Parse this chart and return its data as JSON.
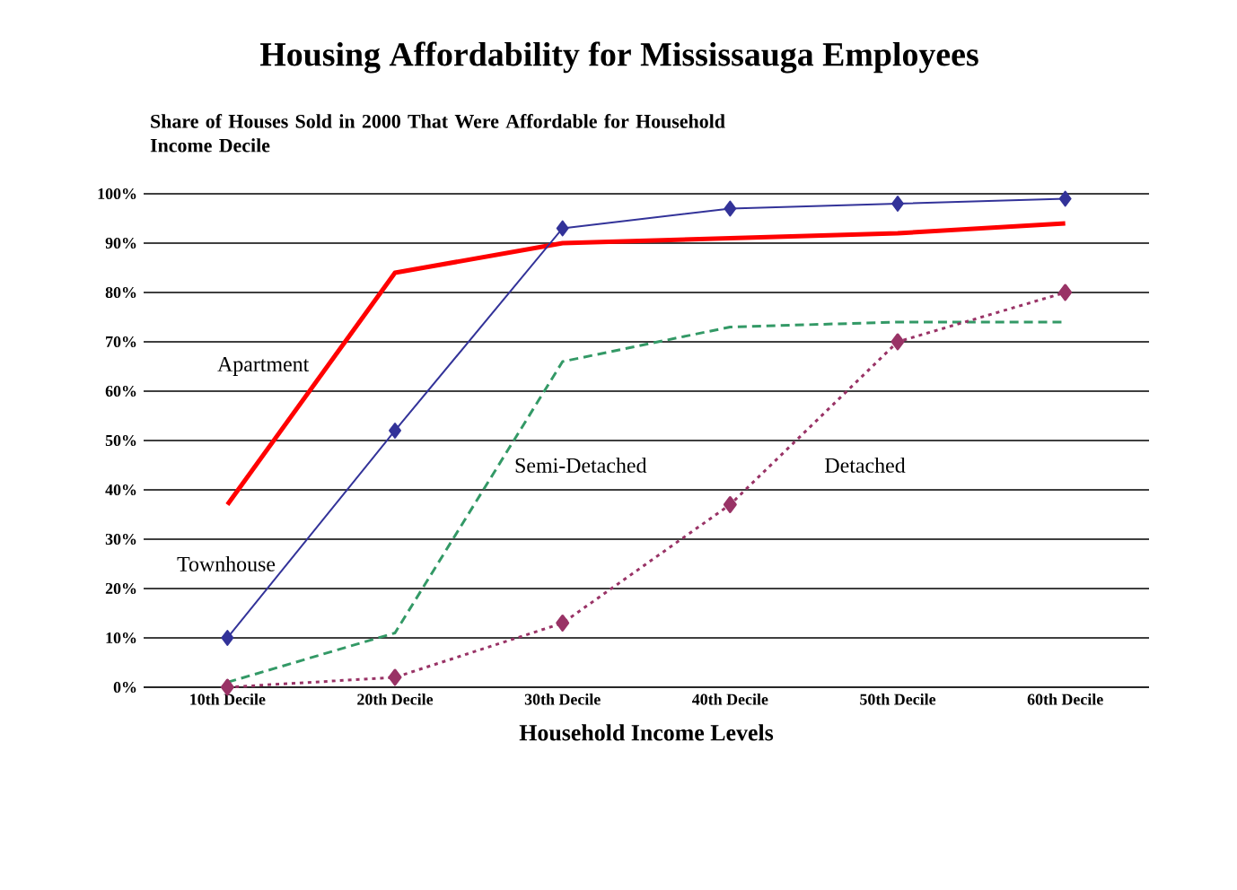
{
  "chart_data": {
    "type": "line",
    "title": "Housing Affordability for Mississauga Employees",
    "subtitle": "Share of Houses Sold in 2000 That Were Affordable for Household Income Decile",
    "xlabel": "Household Income Levels",
    "categories": [
      "10th Decile",
      "20th Decile",
      "30th Decile",
      "40th Decile",
      "50th Decile",
      "60th Decile"
    ],
    "series": [
      {
        "name": "Apartment",
        "color": "#ff0000",
        "line_style": "solid",
        "marker": "none",
        "values": [
          37,
          84,
          90,
          91,
          92,
          94
        ]
      },
      {
        "name": "Townhouse",
        "color": "#333399",
        "line_style": "solid",
        "marker": "diamond",
        "values": [
          10,
          52,
          93,
          97,
          98,
          99
        ]
      },
      {
        "name": "Semi-Detached",
        "color": "#339966",
        "line_style": "dashed",
        "marker": "none",
        "values": [
          1,
          11,
          66,
          73,
          74,
          74
        ]
      },
      {
        "name": "Detached",
        "color": "#993366",
        "line_style": "dotted",
        "marker": "diamond",
        "values": [
          0,
          2,
          13,
          37,
          70,
          80
        ]
      }
    ],
    "ylim": [
      0,
      100
    ],
    "yticks": [
      {
        "value": 0,
        "label": "0%"
      },
      {
        "value": 10,
        "label": "10%"
      },
      {
        "value": 20,
        "label": "20%"
      },
      {
        "value": 30,
        "label": "30%"
      },
      {
        "value": 40,
        "label": "40%"
      },
      {
        "value": 50,
        "label": "50%"
      },
      {
        "value": 60,
        "label": "60%"
      },
      {
        "value": 70,
        "label": "70%"
      },
      {
        "value": 80,
        "label": "80%"
      },
      {
        "value": 90,
        "label": "90%"
      },
      {
        "value": 100,
        "label": "100%"
      }
    ],
    "grid": "y",
    "legend": false
  }
}
